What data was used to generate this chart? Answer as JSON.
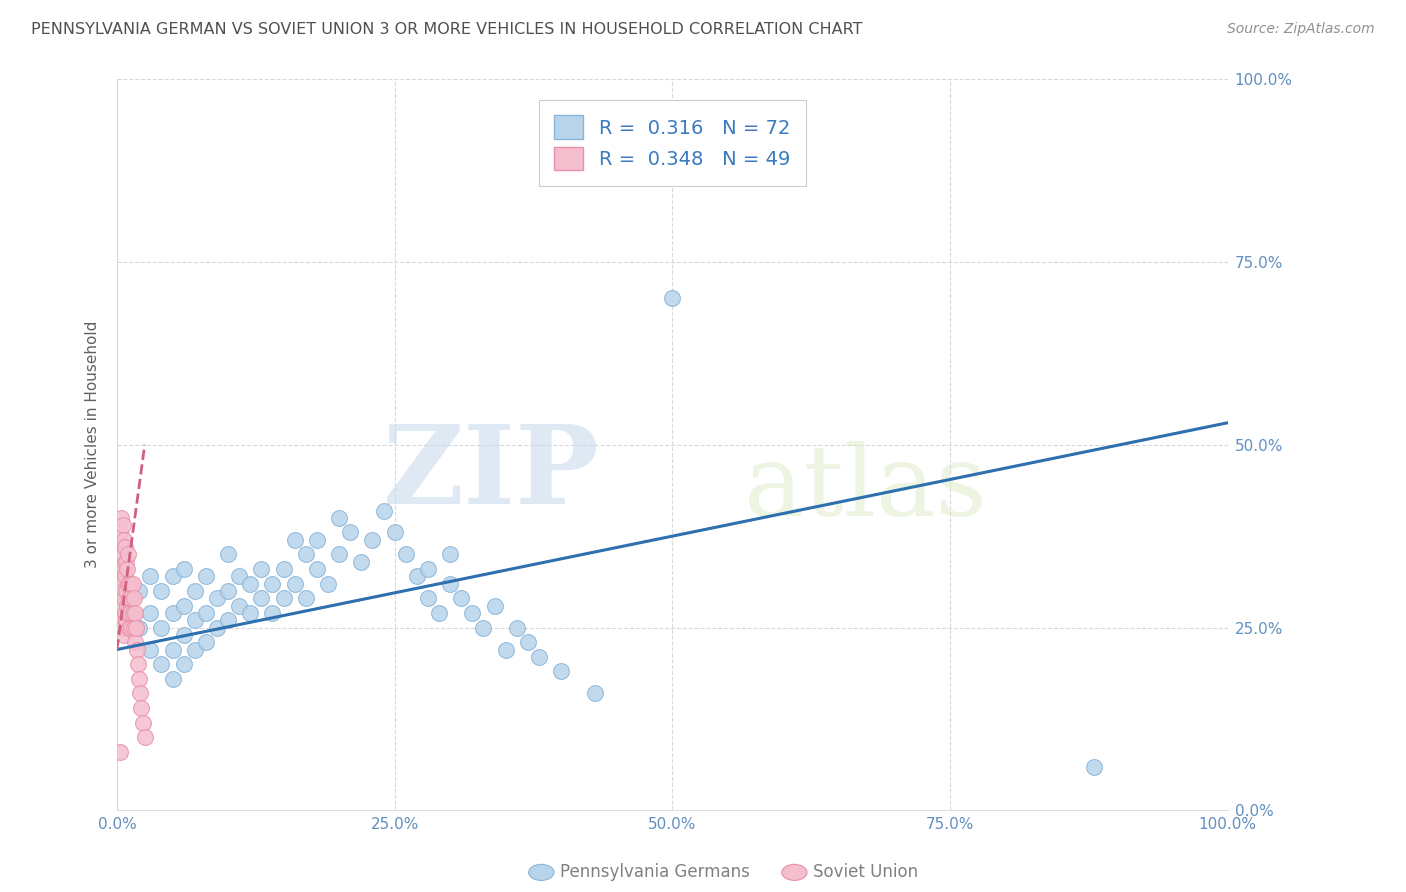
{
  "title": "PENNSYLVANIA GERMAN VS SOVIET UNION 3 OR MORE VEHICLES IN HOUSEHOLD CORRELATION CHART",
  "source": "Source: ZipAtlas.com",
  "ylabel": "3 or more Vehicles in Household",
  "watermark_zip": "ZIP",
  "watermark_atlas": "atlas",
  "xlim": [
    0,
    1
  ],
  "ylim": [
    0,
    1
  ],
  "xticks": [
    0,
    0.25,
    0.5,
    0.75,
    1.0
  ],
  "yticks": [
    0,
    0.25,
    0.5,
    0.75,
    1.0
  ],
  "xtick_labels": [
    "0.0%",
    "25.0%",
    "50.0%",
    "75.0%",
    "100.0%"
  ],
  "ytick_labels": [
    "0.0%",
    "25.0%",
    "50.0%",
    "75.0%",
    "100.0%"
  ],
  "blue_color": "#b8d4ea",
  "blue_edge": "#8ab4d8",
  "pink_color": "#f5bece",
  "pink_edge": "#e890a8",
  "blue_line_color": "#2e6faf",
  "pink_line_color": "#d06080",
  "legend_blue_R": "0.316",
  "legend_blue_N": "72",
  "legend_pink_R": "0.348",
  "legend_pink_N": "49",
  "legend_label_blue": "Pennsylvania Germans",
  "legend_label_pink": "Soviet Union",
  "blue_scatter_x": [
    0.01,
    0.02,
    0.02,
    0.03,
    0.03,
    0.03,
    0.04,
    0.04,
    0.04,
    0.05,
    0.05,
    0.05,
    0.05,
    0.06,
    0.06,
    0.06,
    0.06,
    0.07,
    0.07,
    0.07,
    0.08,
    0.08,
    0.08,
    0.09,
    0.09,
    0.1,
    0.1,
    0.1,
    0.11,
    0.11,
    0.12,
    0.12,
    0.13,
    0.13,
    0.14,
    0.14,
    0.15,
    0.15,
    0.16,
    0.16,
    0.17,
    0.17,
    0.18,
    0.18,
    0.19,
    0.2,
    0.2,
    0.21,
    0.22,
    0.23,
    0.24,
    0.25,
    0.26,
    0.27,
    0.28,
    0.28,
    0.29,
    0.3,
    0.3,
    0.31,
    0.32,
    0.33,
    0.34,
    0.35,
    0.36,
    0.37,
    0.38,
    0.4,
    0.43,
    0.45,
    0.5,
    0.88
  ],
  "blue_scatter_y": [
    0.27,
    0.25,
    0.3,
    0.22,
    0.27,
    0.32,
    0.2,
    0.25,
    0.3,
    0.18,
    0.22,
    0.27,
    0.32,
    0.2,
    0.24,
    0.28,
    0.33,
    0.22,
    0.26,
    0.3,
    0.23,
    0.27,
    0.32,
    0.25,
    0.29,
    0.26,
    0.3,
    0.35,
    0.28,
    0.32,
    0.27,
    0.31,
    0.29,
    0.33,
    0.27,
    0.31,
    0.29,
    0.33,
    0.37,
    0.31,
    0.35,
    0.29,
    0.33,
    0.37,
    0.31,
    0.35,
    0.4,
    0.38,
    0.34,
    0.37,
    0.41,
    0.38,
    0.35,
    0.32,
    0.29,
    0.33,
    0.27,
    0.31,
    0.35,
    0.29,
    0.27,
    0.25,
    0.28,
    0.22,
    0.25,
    0.23,
    0.21,
    0.19,
    0.16,
    0.88,
    0.7,
    0.06
  ],
  "pink_scatter_x": [
    0.002,
    0.002,
    0.003,
    0.003,
    0.003,
    0.004,
    0.004,
    0.004,
    0.004,
    0.005,
    0.005,
    0.005,
    0.005,
    0.006,
    0.006,
    0.006,
    0.006,
    0.007,
    0.007,
    0.007,
    0.008,
    0.008,
    0.008,
    0.009,
    0.009,
    0.01,
    0.01,
    0.01,
    0.011,
    0.011,
    0.012,
    0.012,
    0.013,
    0.013,
    0.014,
    0.014,
    0.015,
    0.015,
    0.016,
    0.016,
    0.017,
    0.018,
    0.019,
    0.02,
    0.021,
    0.022,
    0.023,
    0.025,
    0.003
  ],
  "pink_scatter_y": [
    0.3,
    0.35,
    0.28,
    0.33,
    0.38,
    0.26,
    0.31,
    0.36,
    0.4,
    0.25,
    0.3,
    0.35,
    0.39,
    0.24,
    0.29,
    0.33,
    0.37,
    0.27,
    0.32,
    0.36,
    0.26,
    0.3,
    0.34,
    0.28,
    0.33,
    0.27,
    0.31,
    0.35,
    0.25,
    0.29,
    0.27,
    0.31,
    0.25,
    0.29,
    0.27,
    0.31,
    0.25,
    0.29,
    0.23,
    0.27,
    0.25,
    0.22,
    0.2,
    0.18,
    0.16,
    0.14,
    0.12,
    0.1,
    0.08
  ],
  "blue_line_x": [
    0.0,
    1.0
  ],
  "blue_line_y": [
    0.22,
    0.53
  ],
  "pink_line_x": [
    0.0,
    0.025
  ],
  "pink_line_y": [
    0.22,
    0.5
  ],
  "grid_color": "#d8d8d8",
  "grid_style": "--",
  "background_color": "#ffffff",
  "title_color": "#505050",
  "source_color": "#909090",
  "axis_label_color": "#606060",
  "tick_color": "#6090c0"
}
